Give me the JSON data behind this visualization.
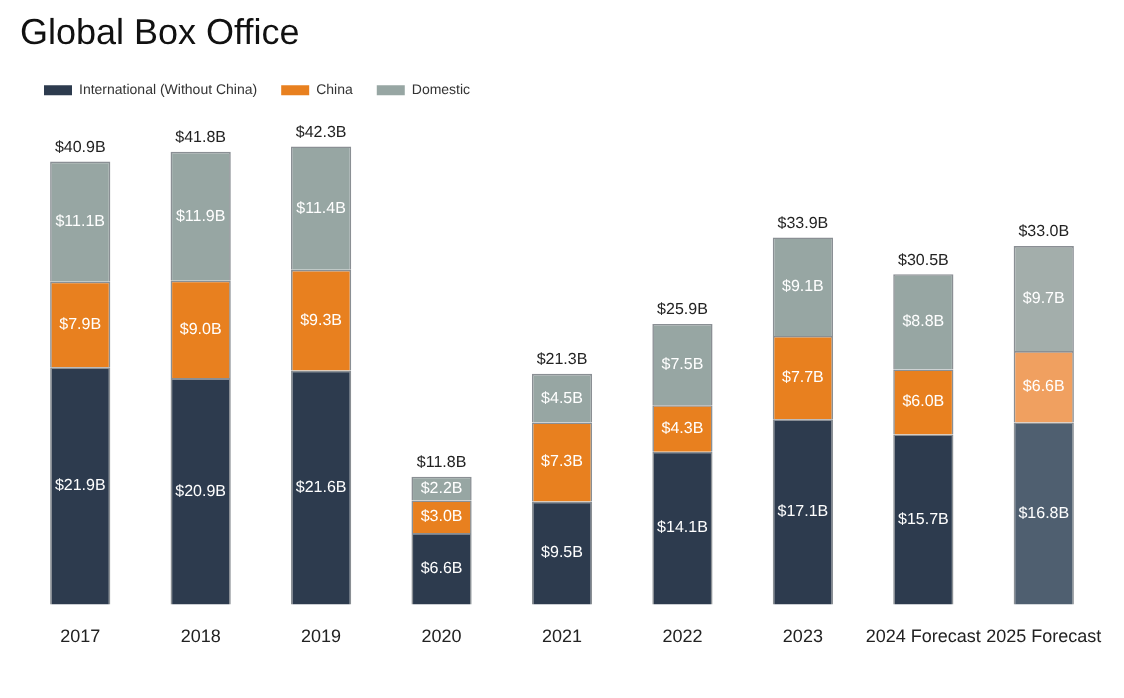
{
  "chart_data": {
    "type": "bar",
    "title": "Global Box Office",
    "stacked": true,
    "legend": "top left",
    "grid": false,
    "categories": [
      "2017",
      "2018",
      "2019",
      "2020",
      "2021",
      "2022",
      "2023",
      "2024 Forecast",
      "2025 Forecast"
    ],
    "series": [
      {
        "name": "International (Without China)",
        "color": "#2d3b4e",
        "colors": [
          "#2d3b4e",
          "#2d3b4e",
          "#2d3b4e",
          "#2d3b4e",
          "#2d3b4e",
          "#2d3b4e",
          "#2d3b4e",
          "#2d3b4e",
          "#4f5f70"
        ],
        "values": [
          21.9,
          20.9,
          21.6,
          6.6,
          9.5,
          14.1,
          17.1,
          15.7,
          16.8
        ],
        "value_labels": [
          "$21.9B",
          "$20.9B",
          "$21.6B",
          "$6.6B",
          "$9.5B",
          "$14.1B",
          "$17.1B",
          "$15.7B",
          "$16.8B"
        ]
      },
      {
        "name": "China",
        "color": "#e8801f",
        "colors": [
          "#e8801f",
          "#e8801f",
          "#e8801f",
          "#e8801f",
          "#e8801f",
          "#e8801f",
          "#e8801f",
          "#e8801f",
          "#f0a060"
        ],
        "values": [
          7.9,
          9.0,
          9.3,
          3.0,
          7.3,
          4.3,
          7.7,
          6.0,
          6.6
        ],
        "value_labels": [
          "$7.9B",
          "$9.0B",
          "$9.3B",
          "$3.0B",
          "$7.3B",
          "$4.3B",
          "$7.7B",
          "$6.0B",
          "$6.6B"
        ]
      },
      {
        "name": "Domestic",
        "color": "#97a6a3",
        "colors": [
          "#97a6a3",
          "#97a6a3",
          "#97a6a3",
          "#97a6a3",
          "#97a6a3",
          "#97a6a3",
          "#97a6a3",
          "#97a6a3",
          "#a3aeab"
        ],
        "values": [
          11.1,
          11.9,
          11.4,
          2.2,
          4.5,
          7.5,
          9.1,
          8.8,
          9.7
        ],
        "value_labels": [
          "$11.1B",
          "$11.9B",
          "$11.4B",
          "$2.2B",
          "$4.5B",
          "$7.5B",
          "$9.1B",
          "$8.8B",
          "$9.7B"
        ]
      }
    ],
    "totals": [
      "$40.9B",
      "$41.8B",
      "$42.3B",
      "$11.8B",
      "$21.3B",
      "$25.9B",
      "$33.9B",
      "$30.5B",
      "$33.0B"
    ]
  }
}
